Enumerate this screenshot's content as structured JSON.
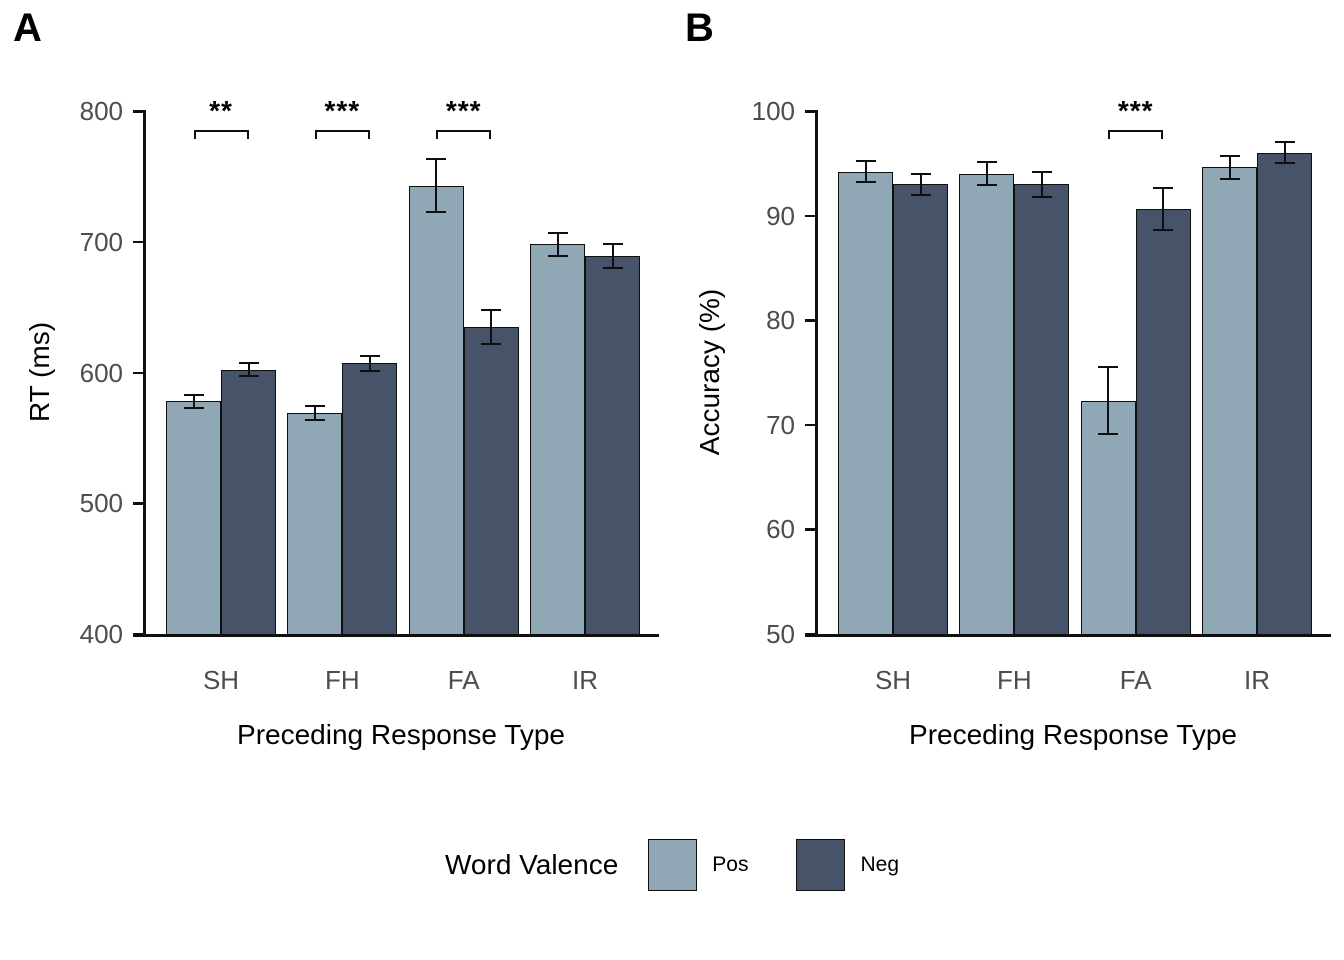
{
  "chart_data": [
    {
      "type": "bar",
      "panel_label": "A",
      "ylabel": "RT (ms)",
      "xlabel": "Preceding Response Type",
      "ylim": [
        400,
        800
      ],
      "yticks": [
        400,
        500,
        600,
        700,
        800
      ],
      "categories": [
        "SH",
        "FH",
        "FA",
        "IR"
      ],
      "series": [
        {
          "name": "Pos",
          "values": [
            578,
            569,
            743,
            698
          ],
          "errors": [
            5,
            5,
            20,
            9
          ]
        },
        {
          "name": "Neg",
          "values": [
            602,
            607,
            635,
            689
          ],
          "errors": [
            5,
            6,
            13,
            9
          ]
        }
      ],
      "significance": [
        {
          "category": "SH",
          "label": "**"
        },
        {
          "category": "FH",
          "label": "***"
        },
        {
          "category": "FA",
          "label": "***"
        }
      ],
      "grid": false,
      "legend_position": "bottom"
    },
    {
      "type": "bar",
      "panel_label": "B",
      "ylabel": "Accuracy (%)",
      "xlabel": "Preceding Response Type",
      "ylim": [
        50,
        100
      ],
      "yticks": [
        50,
        60,
        70,
        80,
        90,
        100
      ],
      "categories": [
        "SH",
        "FH",
        "FA",
        "IR"
      ],
      "series": [
        {
          "name": "Pos",
          "values": [
            94.2,
            94.0,
            72.3,
            94.6
          ],
          "errors": [
            1.0,
            1.1,
            3.2,
            1.1
          ]
        },
        {
          "name": "Neg",
          "values": [
            93.0,
            93.0,
            90.6,
            96.0
          ],
          "errors": [
            1.0,
            1.2,
            2.0,
            1.0
          ]
        }
      ],
      "significance": [
        {
          "category": "FA",
          "label": "***"
        }
      ],
      "grid": false,
      "legend_position": "bottom"
    }
  ],
  "legend": {
    "title": "Word Valence",
    "items": [
      {
        "label": "Pos",
        "color": "#90A7B5"
      },
      {
        "label": "Neg",
        "color": "#475369"
      }
    ]
  },
  "styles": {
    "pos_fill": "#90A7B5",
    "neg_fill": "#475369",
    "bar_border": "#0f0f0f",
    "axis_color": "#0f0f0f",
    "tick_label_color": "#4d4d4d",
    "text_color": "#000000",
    "background": "#ffffff"
  }
}
